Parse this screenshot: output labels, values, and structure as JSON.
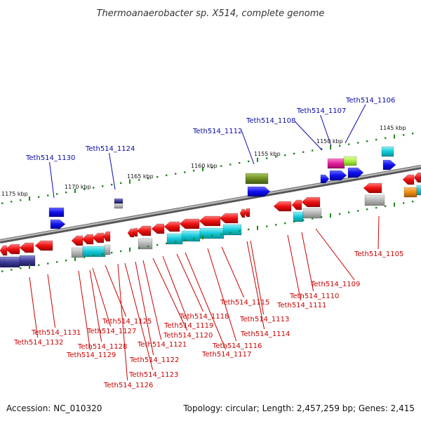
{
  "title": "Thermoanaerobacter sp. X514, complete genome",
  "footer": {
    "accession": "Accession: NC_010320",
    "topology": "Topology: circular; Length: 2,457,259 bp; Genes: 2,415"
  },
  "scale_labels": [
    "1175 kbp",
    "1170 kbp",
    "1165 kbp",
    "1160 kbp",
    "1155 kbp",
    "1150 kbp",
    "1145 kbp"
  ],
  "top_labels": [
    "Teth514_1130",
    "Teth514_1124",
    "Teth514_1112",
    "Teth514_1108",
    "Teth514_1107",
    "Teth514_1106"
  ],
  "bottom_labels": [
    "Teth514_1131",
    "Teth514_1132",
    "Teth514_1127",
    "Teth514_1128",
    "Teth514_1129",
    "Teth514_1125",
    "Teth514_1126",
    "Teth514_1122",
    "Teth514_1123",
    "Teth514_1121",
    "Teth514_1120",
    "Teth514_1119",
    "Teth514_1118",
    "Teth514_1117",
    "Teth514_1116",
    "Teth514_1115",
    "Teth514_1114",
    "Teth514_1113",
    "Teth514_1111",
    "Teth514_1110",
    "Teth514_1109",
    "Teth514_1105"
  ],
  "colors": {
    "forward": "#1010ee",
    "reverse": "#ee1010",
    "cyan": "#10c8d8",
    "grey": "#b4b4b4",
    "navy": "#3c3c9a",
    "olive": "#6e8e22",
    "magenta": "#e0209a",
    "lime": "#a8ee40",
    "orange": "#ee8c10",
    "label_blue": "#0a0aa8",
    "label_red": "#cc0000",
    "backbone": "#8a8a8a",
    "tick_green": "#1a8a1a"
  }
}
